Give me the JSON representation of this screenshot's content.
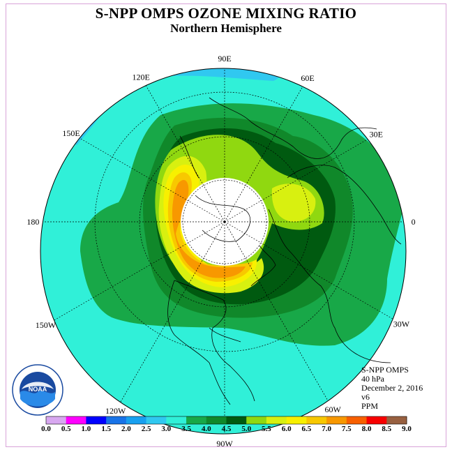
{
  "header": {
    "title": "S-NPP OMPS OZONE MIXING RATIO",
    "subtitle": "Northern Hemisphere"
  },
  "longitude_labels": [
    {
      "text": "90E",
      "angle_deg": 90
    },
    {
      "text": "60E",
      "angle_deg": 60
    },
    {
      "text": "30E",
      "angle_deg": 30
    },
    {
      "text": "0",
      "angle_deg": 0
    },
    {
      "text": "30W",
      "angle_deg": -30
    },
    {
      "text": "60W",
      "angle_deg": -60
    },
    {
      "text": "90W",
      "angle_deg": -90
    },
    {
      "text": "120W",
      "angle_deg": -120
    },
    {
      "text": "150W",
      "angle_deg": -150
    },
    {
      "text": "180",
      "angle_deg": 180
    },
    {
      "text": "150E",
      "angle_deg": 150
    },
    {
      "text": "120E",
      "angle_deg": 120
    }
  ],
  "info": {
    "instrument": "S-NPP OMPS",
    "level": "40 hPa",
    "date": "December 2, 2016",
    "version": "v6",
    "units": "PPM"
  },
  "logo": {
    "text": "NOAA",
    "ring_text": "NATIONAL OCEANIC AND ATMOSPHERIC ADMINISTRATION · U.S. DEPARTMENT OF COMMERCE"
  },
  "colorbar": {
    "labels": [
      "0.0",
      "0.5",
      "1.0",
      "1.5",
      "2.0",
      "2.5",
      "3.0",
      "3.5",
      "4.0",
      "4.5",
      "5.0",
      "5.5",
      "6.0",
      "6.5",
      "7.0",
      "7.5",
      "8.0",
      "8.5",
      "9.0"
    ],
    "colors": [
      "#b088e8",
      "#d8a8f0",
      "#ff00ff",
      "#0000ff",
      "#1873e8",
      "#18a0f0",
      "#30c8f0",
      "#30f0d8",
      "#18a848",
      "#10882a",
      "#005a10",
      "#90d810",
      "#d8f010",
      "#f8f000",
      "#f8c800",
      "#f89800",
      "#f86000",
      "#f80000",
      "#986040"
    ]
  },
  "map_legend": {
    "polar_cap_color": "#ffffff",
    "background_value_color": "#30f0d8",
    "low_value_color": "#30c8f0"
  }
}
